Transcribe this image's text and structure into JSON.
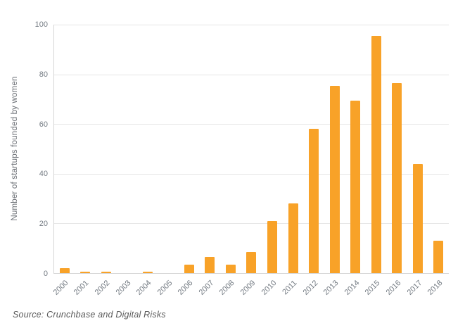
{
  "chart_data": {
    "type": "bar",
    "title": "",
    "xlabel": "",
    "ylabel": "Number of startups founded by women",
    "categories": [
      "2000",
      "2001",
      "2002",
      "2003",
      "2004",
      "2005",
      "2006",
      "2007",
      "2008",
      "2009",
      "2010",
      "2011",
      "2012",
      "2013",
      "2014",
      "2015",
      "2016",
      "2017",
      "2018"
    ],
    "values": [
      2,
      0.5,
      0.5,
      0,
      0.5,
      0,
      3.5,
      6.5,
      3.5,
      8.5,
      21,
      28,
      58,
      75.5,
      69.5,
      95.5,
      76.5,
      44,
      13
    ],
    "ylim": [
      0,
      100
    ],
    "yticks": [
      0,
      20,
      40,
      60,
      80,
      100
    ],
    "grid": true,
    "legend_position": "none",
    "bar_color": "#F8A228"
  },
  "source": "Source: Crunchbase and Digital Risks",
  "colors": {
    "bar": "#F8A228",
    "gridline": "#e6e6e6",
    "axis_line": "#d6d6d6",
    "tick_label": "#747b83",
    "axis_title": "#6b6f75",
    "source_text": "#5a5a5a",
    "background": "#ffffff"
  }
}
